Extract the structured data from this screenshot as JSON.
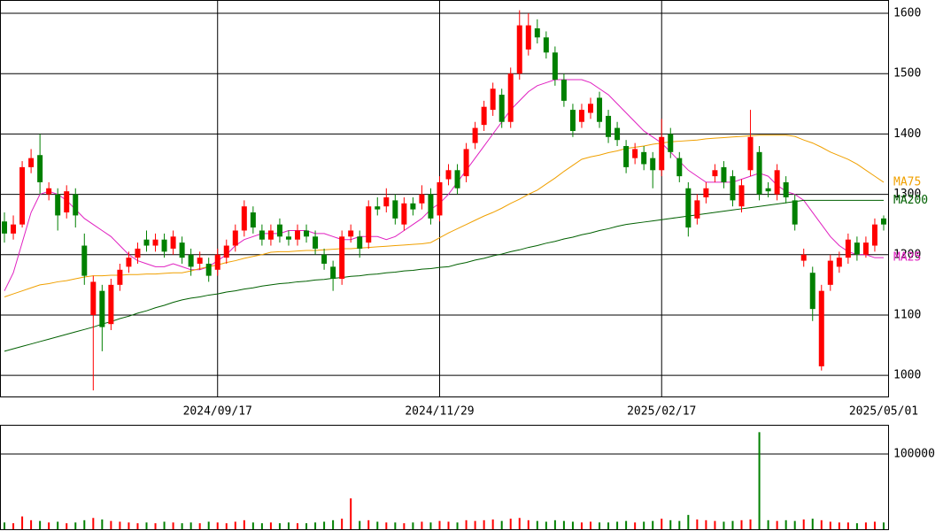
{
  "chart_data": [
    {
      "type": "candlestick",
      "categories": [
        null,
        null,
        null,
        null,
        null,
        null,
        null,
        null,
        null,
        null,
        null,
        null,
        null,
        null,
        null,
        null,
        null,
        null,
        null,
        null,
        null,
        null,
        null,
        null,
        "2024/09/17",
        null,
        null,
        null,
        null,
        null,
        null,
        null,
        null,
        null,
        null,
        null,
        null,
        null,
        null,
        null,
        null,
        null,
        null,
        null,
        null,
        null,
        null,
        null,
        null,
        "2024/11/29",
        null,
        null,
        null,
        null,
        null,
        null,
        null,
        null,
        null,
        null,
        null,
        null,
        null,
        null,
        null,
        null,
        null,
        null,
        null,
        null,
        null,
        null,
        null,
        null,
        "2025/02/17",
        null,
        null,
        null,
        null,
        null,
        null,
        null,
        null,
        null,
        null,
        null,
        null,
        null,
        null,
        null,
        null,
        null,
        null,
        null,
        null,
        null,
        null,
        null,
        null,
        "2025/05/01"
      ],
      "open": [
        1255,
        1235,
        1250,
        1345,
        1365,
        1300,
        1300,
        1270,
        1300,
        1215,
        1100,
        1140,
        1085,
        1150,
        1180,
        1195,
        1225,
        1215,
        1225,
        1210,
        1220,
        1200,
        1185,
        1185,
        1175,
        1195,
        1215,
        1240,
        1270,
        1240,
        1225,
        1250,
        1230,
        1225,
        1240,
        1230,
        1200,
        1180,
        1160,
        1230,
        1230,
        1220,
        1280,
        1280,
        1290,
        1250,
        1285,
        1285,
        1300,
        1265,
        1325,
        1340,
        1330,
        1385,
        1415,
        1440,
        1465,
        1420,
        1500,
        1540,
        1575,
        1560,
        1535,
        1490,
        1440,
        1420,
        1435,
        1460,
        1430,
        1410,
        1380,
        1360,
        1370,
        1360,
        1340,
        1400,
        1360,
        1310,
        1260,
        1295,
        1330,
        1345,
        1330,
        1280,
        1340,
        1370,
        1310,
        1300,
        1320,
        1290,
        1190,
        1170,
        1015,
        1150,
        1180,
        1195,
        1220,
        1200,
        1215,
        1260
      ],
      "high": [
        1270,
        1265,
        1355,
        1375,
        1400,
        1320,
        1310,
        1315,
        1310,
        1235,
        1165,
        1150,
        1160,
        1185,
        1205,
        1220,
        1240,
        1235,
        1235,
        1240,
        1230,
        1210,
        1205,
        1195,
        1210,
        1225,
        1250,
        1290,
        1280,
        1250,
        1250,
        1260,
        1240,
        1250,
        1250,
        1240,
        1210,
        1190,
        1240,
        1250,
        1240,
        1290,
        1295,
        1310,
        1300,
        1295,
        1295,
        1315,
        1310,
        1330,
        1350,
        1350,
        1385,
        1420,
        1455,
        1485,
        1475,
        1510,
        1605,
        1600,
        1590,
        1570,
        1545,
        1500,
        1450,
        1450,
        1460,
        1470,
        1440,
        1420,
        1390,
        1385,
        1380,
        1370,
        1425,
        1410,
        1370,
        1320,
        1300,
        1320,
        1350,
        1355,
        1340,
        1325,
        1440,
        1380,
        1320,
        1350,
        1330,
        1300,
        1210,
        1180,
        1150,
        1200,
        1205,
        1235,
        1230,
        1230,
        1260,
        1265
      ],
      "low": [
        1220,
        1225,
        1245,
        1335,
        1300,
        1290,
        1240,
        1260,
        1245,
        1150,
        975,
        1040,
        1075,
        1140,
        1170,
        1185,
        1205,
        1205,
        1195,
        1200,
        1185,
        1165,
        1175,
        1155,
        1165,
        1185,
        1205,
        1230,
        1235,
        1215,
        1215,
        1220,
        1215,
        1215,
        1220,
        1200,
        1175,
        1140,
        1150,
        1220,
        1195,
        1210,
        1265,
        1270,
        1250,
        1240,
        1265,
        1275,
        1250,
        1255,
        1315,
        1300,
        1320,
        1375,
        1405,
        1430,
        1410,
        1410,
        1490,
        1530,
        1550,
        1525,
        1480,
        1445,
        1395,
        1410,
        1425,
        1410,
        1385,
        1380,
        1335,
        1350,
        1340,
        1310,
        1330,
        1360,
        1320,
        1230,
        1250,
        1285,
        1320,
        1310,
        1280,
        1270,
        1330,
        1290,
        1295,
        1290,
        1285,
        1240,
        1180,
        1090,
        1008,
        1140,
        1170,
        1185,
        1190,
        1195,
        1205,
        1240
      ],
      "close": [
        1235,
        1250,
        1345,
        1360,
        1320,
        1310,
        1265,
        1305,
        1265,
        1165,
        1155,
        1080,
        1150,
        1175,
        1195,
        1210,
        1215,
        1225,
        1205,
        1230,
        1195,
        1180,
        1195,
        1165,
        1200,
        1215,
        1240,
        1280,
        1245,
        1225,
        1240,
        1230,
        1225,
        1240,
        1230,
        1210,
        1185,
        1160,
        1230,
        1240,
        1210,
        1280,
        1275,
        1295,
        1260,
        1285,
        1275,
        1300,
        1260,
        1320,
        1340,
        1310,
        1375,
        1410,
        1445,
        1475,
        1420,
        1500,
        1580,
        1580,
        1560,
        1535,
        1490,
        1455,
        1405,
        1440,
        1450,
        1420,
        1395,
        1390,
        1345,
        1375,
        1350,
        1340,
        1395,
        1370,
        1330,
        1245,
        1290,
        1310,
        1340,
        1320,
        1290,
        1315,
        1395,
        1300,
        1305,
        1340,
        1295,
        1250,
        1200,
        1110,
        1140,
        1190,
        1195,
        1225,
        1200,
        1220,
        1250,
        1250
      ],
      "up_color": "#ff0000",
      "down_color": "#008000",
      "series": [
        {
          "name": "MA25",
          "color": "#e020c0",
          "values": [
            1140,
            1170,
            1220,
            1270,
            1300,
            1305,
            1300,
            1290,
            1275,
            1260,
            1250,
            1240,
            1230,
            1215,
            1200,
            1190,
            1185,
            1180,
            1180,
            1185,
            1180,
            1175,
            1175,
            1180,
            1190,
            1200,
            1215,
            1225,
            1230,
            1235,
            1235,
            1235,
            1240,
            1240,
            1240,
            1235,
            1235,
            1230,
            1225,
            1225,
            1230,
            1230,
            1230,
            1225,
            1230,
            1240,
            1250,
            1260,
            1275,
            1285,
            1300,
            1320,
            1340,
            1360,
            1380,
            1400,
            1420,
            1440,
            1455,
            1470,
            1480,
            1485,
            1490,
            1490,
            1490,
            1490,
            1485,
            1475,
            1465,
            1450,
            1435,
            1420,
            1405,
            1395,
            1385,
            1370,
            1355,
            1340,
            1330,
            1320,
            1320,
            1320,
            1320,
            1325,
            1330,
            1335,
            1330,
            1315,
            1305,
            1300,
            1290,
            1270,
            1250,
            1230,
            1215,
            1205,
            1200,
            1200,
            1195,
            1195
          ]
        },
        {
          "name": "MA75",
          "color": "#f0a000",
          "values": [
            1130,
            1135,
            1140,
            1145,
            1150,
            1152,
            1155,
            1157,
            1160,
            1163,
            1165,
            1165,
            1166,
            1166,
            1167,
            1167,
            1168,
            1168,
            1169,
            1170,
            1170,
            1173,
            1177,
            1180,
            1183,
            1187,
            1190,
            1194,
            1197,
            1200,
            1204,
            1205,
            1205,
            1206,
            1207,
            1207,
            1208,
            1209,
            1210,
            1210,
            1211,
            1212,
            1213,
            1214,
            1215,
            1216,
            1217,
            1218,
            1220,
            1228,
            1236,
            1243,
            1250,
            1257,
            1264,
            1270,
            1277,
            1285,
            1292,
            1300,
            1307,
            1317,
            1327,
            1338,
            1348,
            1358,
            1362,
            1365,
            1369,
            1372,
            1376,
            1378,
            1380,
            1383,
            1385,
            1387,
            1388,
            1389,
            1390,
            1392,
            1393,
            1394,
            1395,
            1396,
            1397,
            1398,
            1398,
            1398,
            1398,
            1396,
            1390,
            1385,
            1378,
            1370,
            1364,
            1358,
            1350,
            1340,
            1330,
            1320
          ]
        },
        {
          "name": "MA200",
          "color": "#006000",
          "values": [
            1040,
            1044,
            1048,
            1052,
            1056,
            1060,
            1064,
            1068,
            1072,
            1076,
            1080,
            1085,
            1089,
            1094,
            1098,
            1103,
            1107,
            1112,
            1116,
            1121,
            1125,
            1128,
            1130,
            1133,
            1135,
            1138,
            1140,
            1143,
            1145,
            1148,
            1150,
            1152,
            1153,
            1155,
            1156,
            1158,
            1159,
            1161,
            1162,
            1164,
            1165,
            1167,
            1168,
            1170,
            1171,
            1173,
            1174,
            1176,
            1177,
            1179,
            1180,
            1184,
            1187,
            1191,
            1194,
            1198,
            1201,
            1205,
            1208,
            1212,
            1215,
            1219,
            1222,
            1226,
            1229,
            1233,
            1236,
            1240,
            1243,
            1247,
            1250,
            1252,
            1254,
            1256,
            1258,
            1260,
            1262,
            1264,
            1266,
            1268,
            1270,
            1272,
            1274,
            1276,
            1278,
            1280,
            1282,
            1284,
            1286,
            1288,
            1290,
            1290,
            1290,
            1290,
            1290,
            1290,
            1290,
            1290,
            1290,
            1290
          ]
        }
      ],
      "ylim": [
        965,
        1622
      ],
      "yticks": [
        1000,
        1100,
        1200,
        1300,
        1400,
        1500,
        1600
      ],
      "grid": true
    },
    {
      "type": "bar",
      "values": [
        9000,
        8000,
        17000,
        12000,
        11000,
        9000,
        10000,
        8000,
        9000,
        12000,
        15000,
        13000,
        11000,
        10000,
        9000,
        8000,
        9000,
        8000,
        10000,
        9000,
        8000,
        9000,
        8000,
        10000,
        9000,
        8000,
        10000,
        12000,
        9000,
        8000,
        9000,
        8000,
        9000,
        8000,
        8000,
        9000,
        10000,
        12000,
        14000,
        41000,
        11000,
        12000,
        10000,
        9000,
        9000,
        8000,
        9000,
        10000,
        9000,
        11000,
        10000,
        9000,
        12000,
        11000,
        12000,
        13000,
        11000,
        14000,
        15000,
        12000,
        11000,
        10000,
        12000,
        11000,
        10000,
        9000,
        10000,
        9000,
        9000,
        10000,
        11000,
        9000,
        10000,
        11000,
        14000,
        12000,
        11000,
        19000,
        13000,
        12000,
        11000,
        10000,
        11000,
        12000,
        13000,
        129000,
        12000,
        11000,
        12000,
        11000,
        13000,
        14000,
        12000,
        10000,
        9000,
        9000,
        8000,
        9000,
        10000,
        9000
      ],
      "up_color": "#ff0000",
      "down_color": "#008000",
      "ylim": [
        0,
        138800
      ],
      "yticks": [
        100000
      ]
    }
  ]
}
